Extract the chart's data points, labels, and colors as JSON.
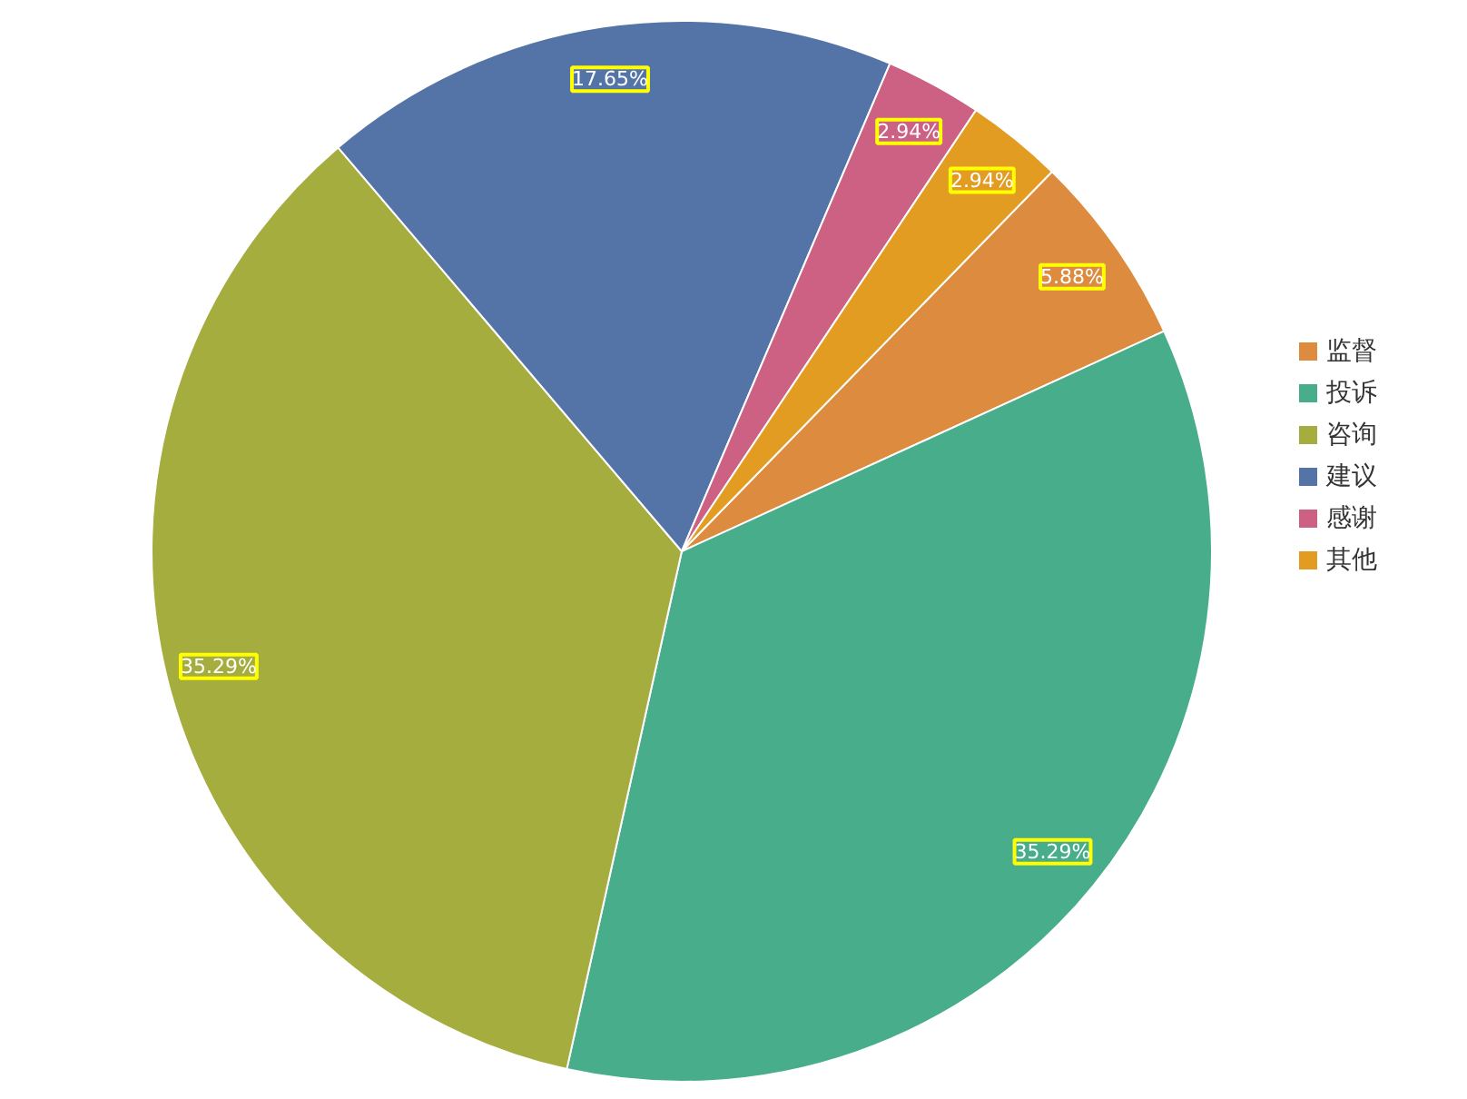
{
  "chart_data": {
    "type": "pie",
    "categories": [
      "监督",
      "投诉",
      "咨询",
      "建议",
      "感谢",
      "其他"
    ],
    "values": [
      5.88,
      35.29,
      35.29,
      17.65,
      2.94,
      2.94
    ],
    "colors": [
      "#dd8c3f",
      "#48ad8a",
      "#a5ad3f",
      "#5474a8",
      "#cc6183",
      "#e29c22"
    ],
    "value_labels": [
      "5.88%",
      "35.29%",
      "35.29%",
      "17.65%",
      "2.94%",
      "2.94%"
    ],
    "legend": "right"
  }
}
